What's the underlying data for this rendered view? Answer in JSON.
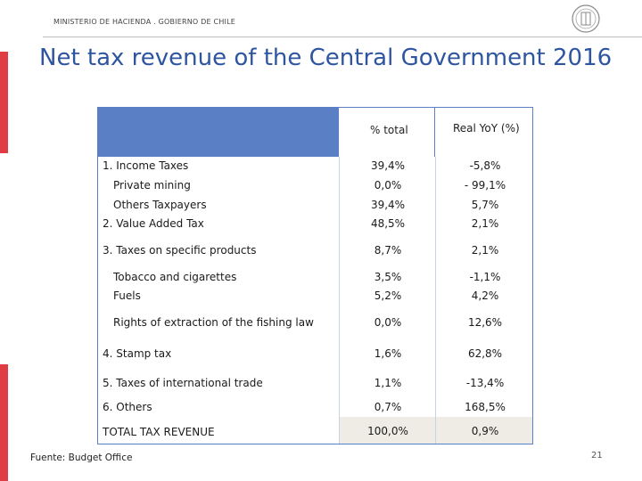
{
  "header": {
    "ministry": "MINISTERIO DE HACIENDA . GOBIERNO DE CHILE",
    "title": "Net tax revenue of the Central Government 2016"
  },
  "table": {
    "columns": [
      "% total",
      "Real YoY (%)"
    ],
    "rows": [
      {
        "label": "1. Income Taxes",
        "total": "39,4%",
        "yoy": "-5,8%"
      },
      {
        "label": "Private mining",
        "total": "0,0%",
        "yoy": "- 99,1%"
      },
      {
        "label": "Others Taxpayers",
        "total": "39,4%",
        "yoy": "5,7%"
      },
      {
        "label": "2. Value Added Tax",
        "total": "48,5%",
        "yoy": "2,1%"
      },
      {
        "label": "3. Taxes on specific products",
        "total": "8,7%",
        "yoy": "2,1%"
      },
      {
        "label": "Tobacco and cigarettes",
        "total": "3,5%",
        "yoy": "-1,1%"
      },
      {
        "label": "Fuels",
        "total": "5,2%",
        "yoy": "4,2%"
      },
      {
        "label": "Rights of extraction of the fishing law",
        "total": "0,0%",
        "yoy": "12,6%"
      },
      {
        "label": "4. Stamp tax",
        "total": "1,6%",
        "yoy": "62,8%"
      },
      {
        "label": "5. Taxes of international trade",
        "total": "1,1%",
        "yoy": "-13,4%"
      },
      {
        "label": "6. Others",
        "total": "0,7%",
        "yoy": "168,5%"
      },
      {
        "label": "TOTAL TAX REVENUE",
        "total": "100,0%",
        "yoy": "0,9%"
      }
    ]
  },
  "footer": {
    "source": "Fuente: Budget Office",
    "page": "21"
  },
  "colors": {
    "title": "#2e55a0",
    "accent_bar": "#e03c44",
    "table_header": "#5b7fc4"
  }
}
